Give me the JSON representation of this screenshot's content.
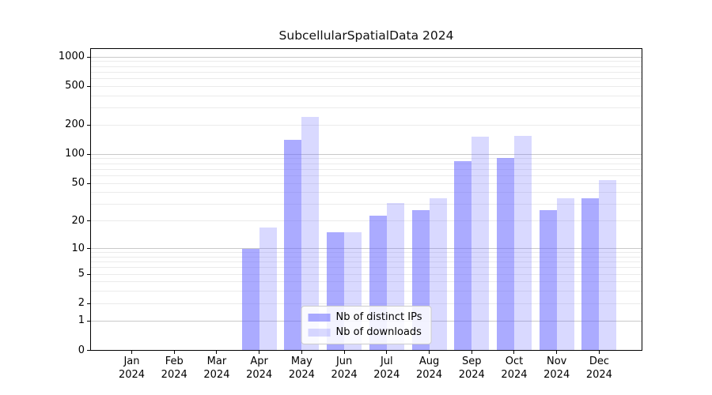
{
  "title": "SubcellularSpatialData 2024",
  "legend": {
    "items": [
      {
        "id": "ips",
        "label": "Nb of distinct IPs"
      },
      {
        "id": "downloads",
        "label": "Nb of downloads"
      }
    ]
  },
  "colors": {
    "bar_base": "#6666ff",
    "bar_alpha_ips": 0.55,
    "bar_alpha_downloads": 0.25,
    "grid_major": "#c9c9c9",
    "grid_minor": "#ebebeb",
    "axis": "#000000",
    "legend_bg": "rgba(255,255,255,0.85)",
    "legend_border": "#cccccc",
    "text": "#000000"
  },
  "chart_data": {
    "type": "bar",
    "title": "SubcellularSpatialData 2024",
    "categories": [
      "Jan 2024",
      "Feb 2024",
      "Mar 2024",
      "Apr 2024",
      "May 2024",
      "Jun 2024",
      "Jul 2024",
      "Aug 2024",
      "Sep 2024",
      "Oct 2024",
      "Nov 2024",
      "Dec 2024"
    ],
    "series": [
      {
        "name": "Nb of distinct IPs",
        "values": [
          0,
          0,
          0,
          10,
          140,
          15,
          23,
          26,
          85,
          92,
          26,
          35
        ]
      },
      {
        "name": "Nb of downloads",
        "values": [
          0,
          0,
          0,
          17,
          241,
          15,
          31,
          35,
          152,
          156,
          35,
          54
        ]
      }
    ],
    "xlabel": "",
    "ylabel": "",
    "yscale": "log1p",
    "yticks": [
      0,
      1,
      2,
      5,
      10,
      20,
      50,
      100,
      200,
      500,
      1000
    ],
    "ylim": [
      0,
      1229
    ],
    "grid": "on",
    "legend_position": "lower center"
  }
}
